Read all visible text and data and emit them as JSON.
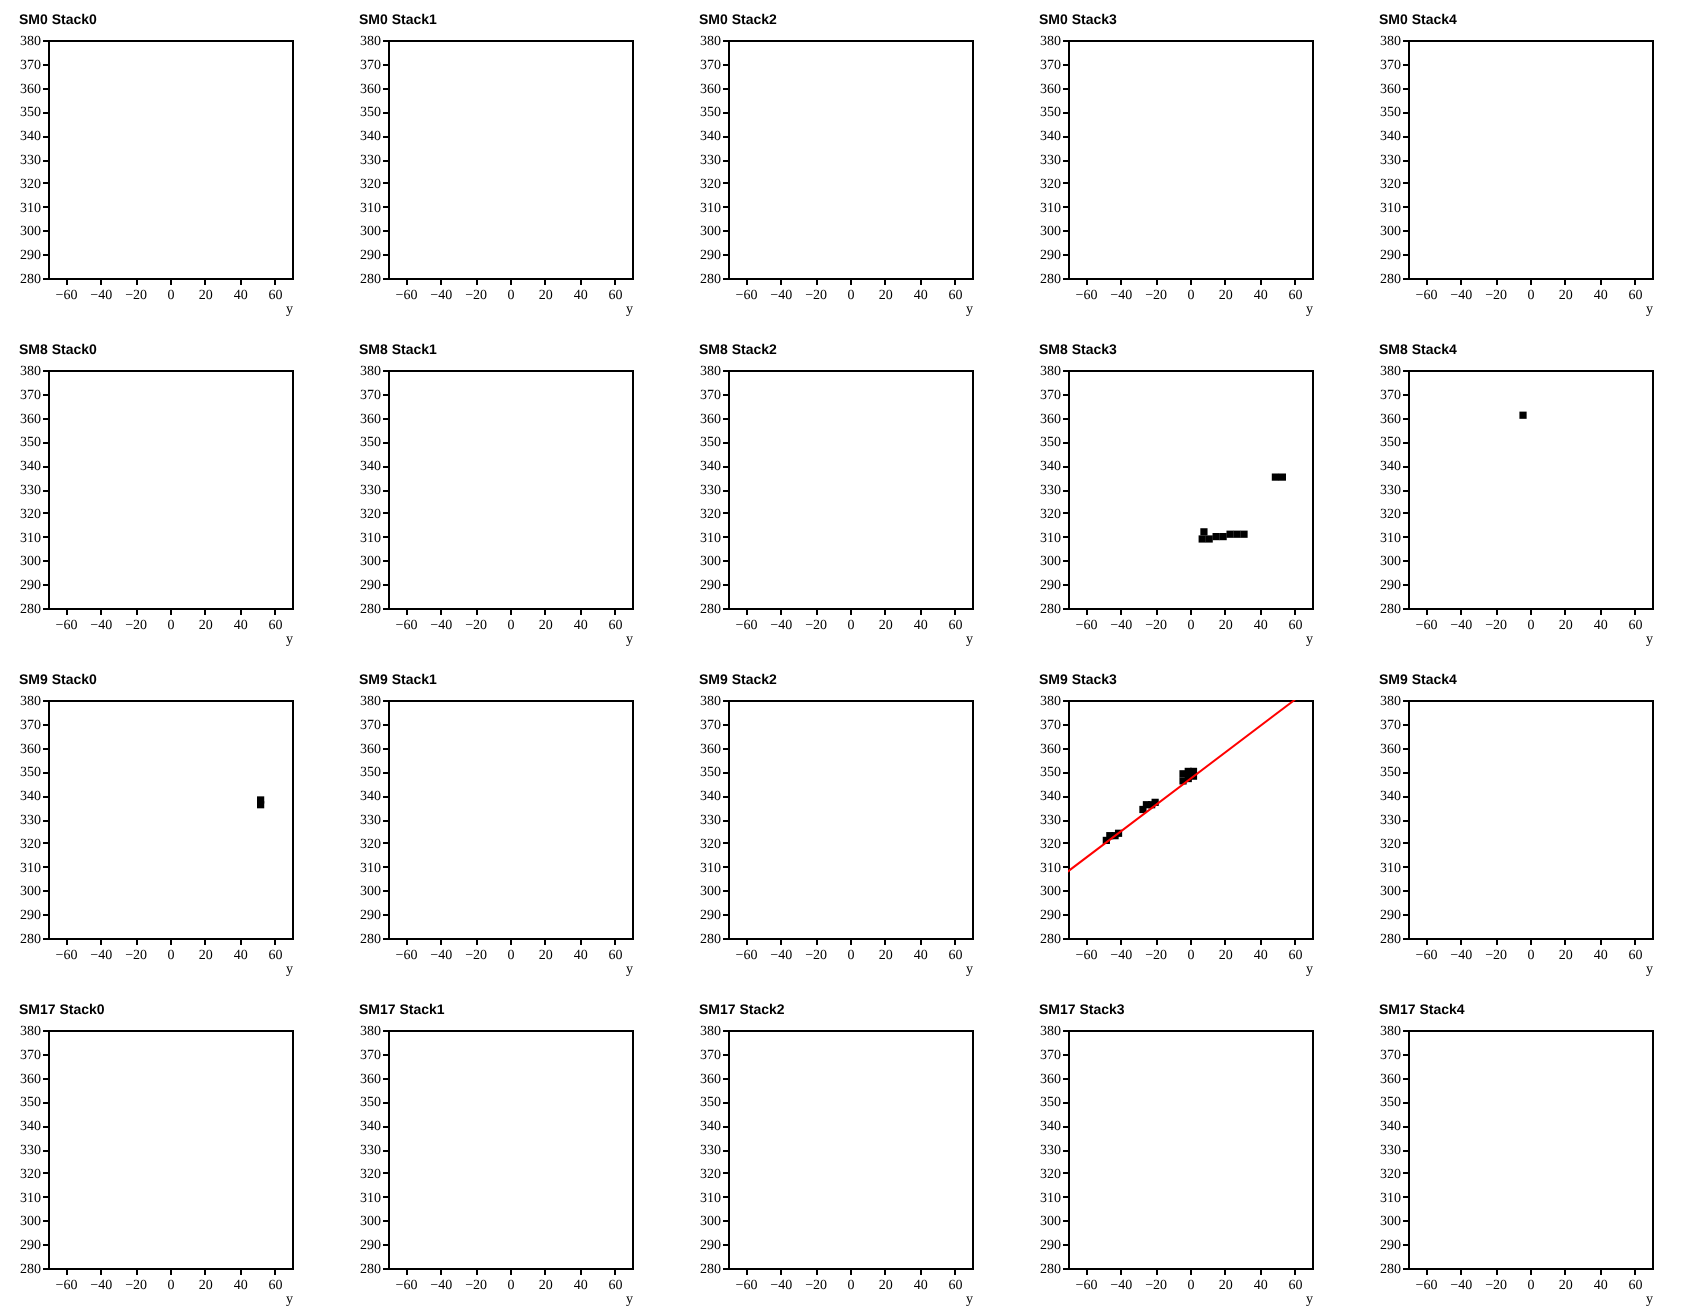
{
  "chart_data": [
    {
      "type": "scatter",
      "title": "SM0 Stack0",
      "xlabel": "y",
      "xlim": [
        -70,
        70
      ],
      "xticks": [
        -60,
        -40,
        -20,
        0,
        20,
        40,
        60
      ],
      "ylim": [
        280,
        380
      ],
      "yticks": [
        280,
        290,
        300,
        310,
        320,
        330,
        340,
        350,
        360,
        370,
        380
      ]
    },
    {
      "type": "scatter",
      "title": "SM0 Stack1",
      "xlabel": "y",
      "xlim": [
        -70,
        70
      ],
      "xticks": [
        -60,
        -40,
        -20,
        0,
        20,
        40,
        60
      ],
      "ylim": [
        280,
        380
      ],
      "yticks": [
        280,
        290,
        300,
        310,
        320,
        330,
        340,
        350,
        360,
        370,
        380
      ]
    },
    {
      "type": "scatter",
      "title": "SM0 Stack2",
      "xlabel": "y",
      "xlim": [
        -70,
        70
      ],
      "xticks": [
        -60,
        -40,
        -20,
        0,
        20,
        40,
        60
      ],
      "ylim": [
        280,
        380
      ],
      "yticks": [
        280,
        290,
        300,
        310,
        320,
        330,
        340,
        350,
        360,
        370,
        380
      ]
    },
    {
      "type": "scatter",
      "title": "SM0 Stack3",
      "xlabel": "y",
      "xlim": [
        -70,
        70
      ],
      "xticks": [
        -60,
        -40,
        -20,
        0,
        20,
        40,
        60
      ],
      "ylim": [
        280,
        380
      ],
      "yticks": [
        280,
        290,
        300,
        310,
        320,
        330,
        340,
        350,
        360,
        370,
        380
      ]
    },
    {
      "type": "scatter",
      "title": "SM0 Stack4",
      "xlabel": "y",
      "xlim": [
        -70,
        70
      ],
      "xticks": [
        -60,
        -40,
        -20,
        0,
        20,
        40,
        60
      ],
      "ylim": [
        280,
        380
      ],
      "yticks": [
        280,
        290,
        300,
        310,
        320,
        330,
        340,
        350,
        360,
        370,
        380
      ]
    },
    {
      "type": "scatter",
      "title": "SM8 Stack0",
      "xlabel": "y",
      "xlim": [
        -70,
        70
      ],
      "xticks": [
        -60,
        -40,
        -20,
        0,
        20,
        40,
        60
      ],
      "ylim": [
        280,
        380
      ],
      "yticks": [
        280,
        290,
        300,
        310,
        320,
        330,
        340,
        350,
        360,
        370,
        380
      ]
    },
    {
      "type": "scatter",
      "title": "SM8 Stack1",
      "xlabel": "y",
      "xlim": [
        -70,
        70
      ],
      "xticks": [
        -60,
        -40,
        -20,
        0,
        20,
        40,
        60
      ],
      "ylim": [
        280,
        380
      ],
      "yticks": [
        280,
        290,
        300,
        310,
        320,
        330,
        340,
        350,
        360,
        370,
        380
      ]
    },
    {
      "type": "scatter",
      "title": "SM8 Stack2",
      "xlabel": "y",
      "xlim": [
        -70,
        70
      ],
      "xticks": [
        -60,
        -40,
        -20,
        0,
        20,
        40,
        60
      ],
      "ylim": [
        280,
        380
      ],
      "yticks": [
        280,
        290,
        300,
        310,
        320,
        330,
        340,
        350,
        360,
        370,
        380
      ]
    },
    {
      "type": "scatter",
      "title": "SM8 Stack3",
      "xlabel": "y",
      "marker": "square",
      "color": "#000000",
      "x": [
        7,
        8,
        11,
        15,
        19,
        23,
        27,
        31,
        49,
        53
      ],
      "values": [
        309,
        312,
        309,
        310,
        310,
        311,
        311,
        311,
        335,
        335
      ],
      "xlim": [
        -70,
        70
      ],
      "xticks": [
        -60,
        -40,
        -20,
        0,
        20,
        40,
        60
      ],
      "ylim": [
        280,
        380
      ],
      "yticks": [
        280,
        290,
        300,
        310,
        320,
        330,
        340,
        350,
        360,
        370,
        380
      ]
    },
    {
      "type": "scatter",
      "title": "SM8 Stack4",
      "xlabel": "y",
      "marker": "square",
      "color": "#000000",
      "x": [
        -4
      ],
      "values": [
        361
      ],
      "xlim": [
        -70,
        70
      ],
      "xticks": [
        -60,
        -40,
        -20,
        0,
        20,
        40,
        60
      ],
      "ylim": [
        280,
        380
      ],
      "yticks": [
        280,
        290,
        300,
        310,
        320,
        330,
        340,
        350,
        360,
        370,
        380
      ]
    },
    {
      "type": "scatter",
      "title": "SM9 Stack0",
      "xlabel": "y",
      "marker": "square",
      "color": "#000000",
      "x": [
        52,
        52
      ],
      "values": [
        336,
        338
      ],
      "xlim": [
        -70,
        70
      ],
      "xticks": [
        -60,
        -40,
        -20,
        0,
        20,
        40,
        60
      ],
      "ylim": [
        280,
        380
      ],
      "yticks": [
        280,
        290,
        300,
        310,
        320,
        330,
        340,
        350,
        360,
        370,
        380
      ]
    },
    {
      "type": "scatter",
      "title": "SM9 Stack1",
      "xlabel": "y",
      "xlim": [
        -70,
        70
      ],
      "xticks": [
        -60,
        -40,
        -20,
        0,
        20,
        40,
        60
      ],
      "ylim": [
        280,
        380
      ],
      "yticks": [
        280,
        290,
        300,
        310,
        320,
        330,
        340,
        350,
        360,
        370,
        380
      ]
    },
    {
      "type": "scatter",
      "title": "SM9 Stack2",
      "xlabel": "y",
      "xlim": [
        -70,
        70
      ],
      "xticks": [
        -60,
        -40,
        -20,
        0,
        20,
        40,
        60
      ],
      "ylim": [
        280,
        380
      ],
      "yticks": [
        280,
        290,
        300,
        310,
        320,
        330,
        340,
        350,
        360,
        370,
        380
      ]
    },
    {
      "type": "scatter",
      "title": "SM9 Stack3",
      "xlabel": "y",
      "marker": "square",
      "series": [
        {
          "type": "scatter",
          "color": "#000000",
          "x": [
            -48,
            -46,
            -43,
            -41,
            -27,
            -25,
            -22,
            -20,
            -4,
            -4,
            -1,
            -1,
            2,
            2
          ],
          "values": [
            321,
            323,
            323,
            324,
            334,
            336,
            336,
            337,
            346,
            349,
            347,
            350,
            348,
            350
          ]
        },
        {
          "type": "line",
          "color": "#ff0000",
          "marker": "none",
          "line_style": "solid",
          "x": [
            -70,
            60
          ],
          "values": [
            308,
            380
          ]
        }
      ],
      "xlim": [
        -70,
        70
      ],
      "xticks": [
        -60,
        -40,
        -20,
        0,
        20,
        40,
        60
      ],
      "ylim": [
        280,
        380
      ],
      "yticks": [
        280,
        290,
        300,
        310,
        320,
        330,
        340,
        350,
        360,
        370,
        380
      ]
    },
    {
      "type": "scatter",
      "title": "SM9 Stack4",
      "xlabel": "y",
      "xlim": [
        -70,
        70
      ],
      "xticks": [
        -60,
        -40,
        -20,
        0,
        20,
        40,
        60
      ],
      "ylim": [
        280,
        380
      ],
      "yticks": [
        280,
        290,
        300,
        310,
        320,
        330,
        340,
        350,
        360,
        370,
        380
      ]
    },
    {
      "type": "scatter",
      "title": "SM17 Stack0",
      "xlabel": "y",
      "xlim": [
        -70,
        70
      ],
      "xticks": [
        -60,
        -40,
        -20,
        0,
        20,
        40,
        60
      ],
      "ylim": [
        280,
        380
      ],
      "yticks": [
        280,
        290,
        300,
        310,
        320,
        330,
        340,
        350,
        360,
        370,
        380
      ]
    },
    {
      "type": "scatter",
      "title": "SM17 Stack1",
      "xlabel": "y",
      "xlim": [
        -70,
        70
      ],
      "xticks": [
        -60,
        -40,
        -20,
        0,
        20,
        40,
        60
      ],
      "ylim": [
        280,
        380
      ],
      "yticks": [
        280,
        290,
        300,
        310,
        320,
        330,
        340,
        350,
        360,
        370,
        380
      ]
    },
    {
      "type": "scatter",
      "title": "SM17 Stack2",
      "xlabel": "y",
      "xlim": [
        -70,
        70
      ],
      "xticks": [
        -60,
        -40,
        -20,
        0,
        20,
        40,
        60
      ],
      "ylim": [
        280,
        380
      ],
      "yticks": [
        280,
        290,
        300,
        310,
        320,
        330,
        340,
        350,
        360,
        370,
        380
      ]
    },
    {
      "type": "scatter",
      "title": "SM17 Stack3",
      "xlabel": "y",
      "xlim": [
        -70,
        70
      ],
      "xticks": [
        -60,
        -40,
        -20,
        0,
        20,
        40,
        60
      ],
      "ylim": [
        280,
        380
      ],
      "yticks": [
        280,
        290,
        300,
        310,
        320,
        330,
        340,
        350,
        360,
        370,
        380
      ]
    },
    {
      "type": "scatter",
      "title": "SM17 Stack4",
      "xlabel": "y",
      "xlim": [
        -70,
        70
      ],
      "xticks": [
        -60,
        -40,
        -20,
        0,
        20,
        40,
        60
      ],
      "ylim": [
        280,
        380
      ],
      "yticks": [
        280,
        290,
        300,
        310,
        320,
        330,
        340,
        350,
        360,
        370,
        380
      ]
    }
  ]
}
